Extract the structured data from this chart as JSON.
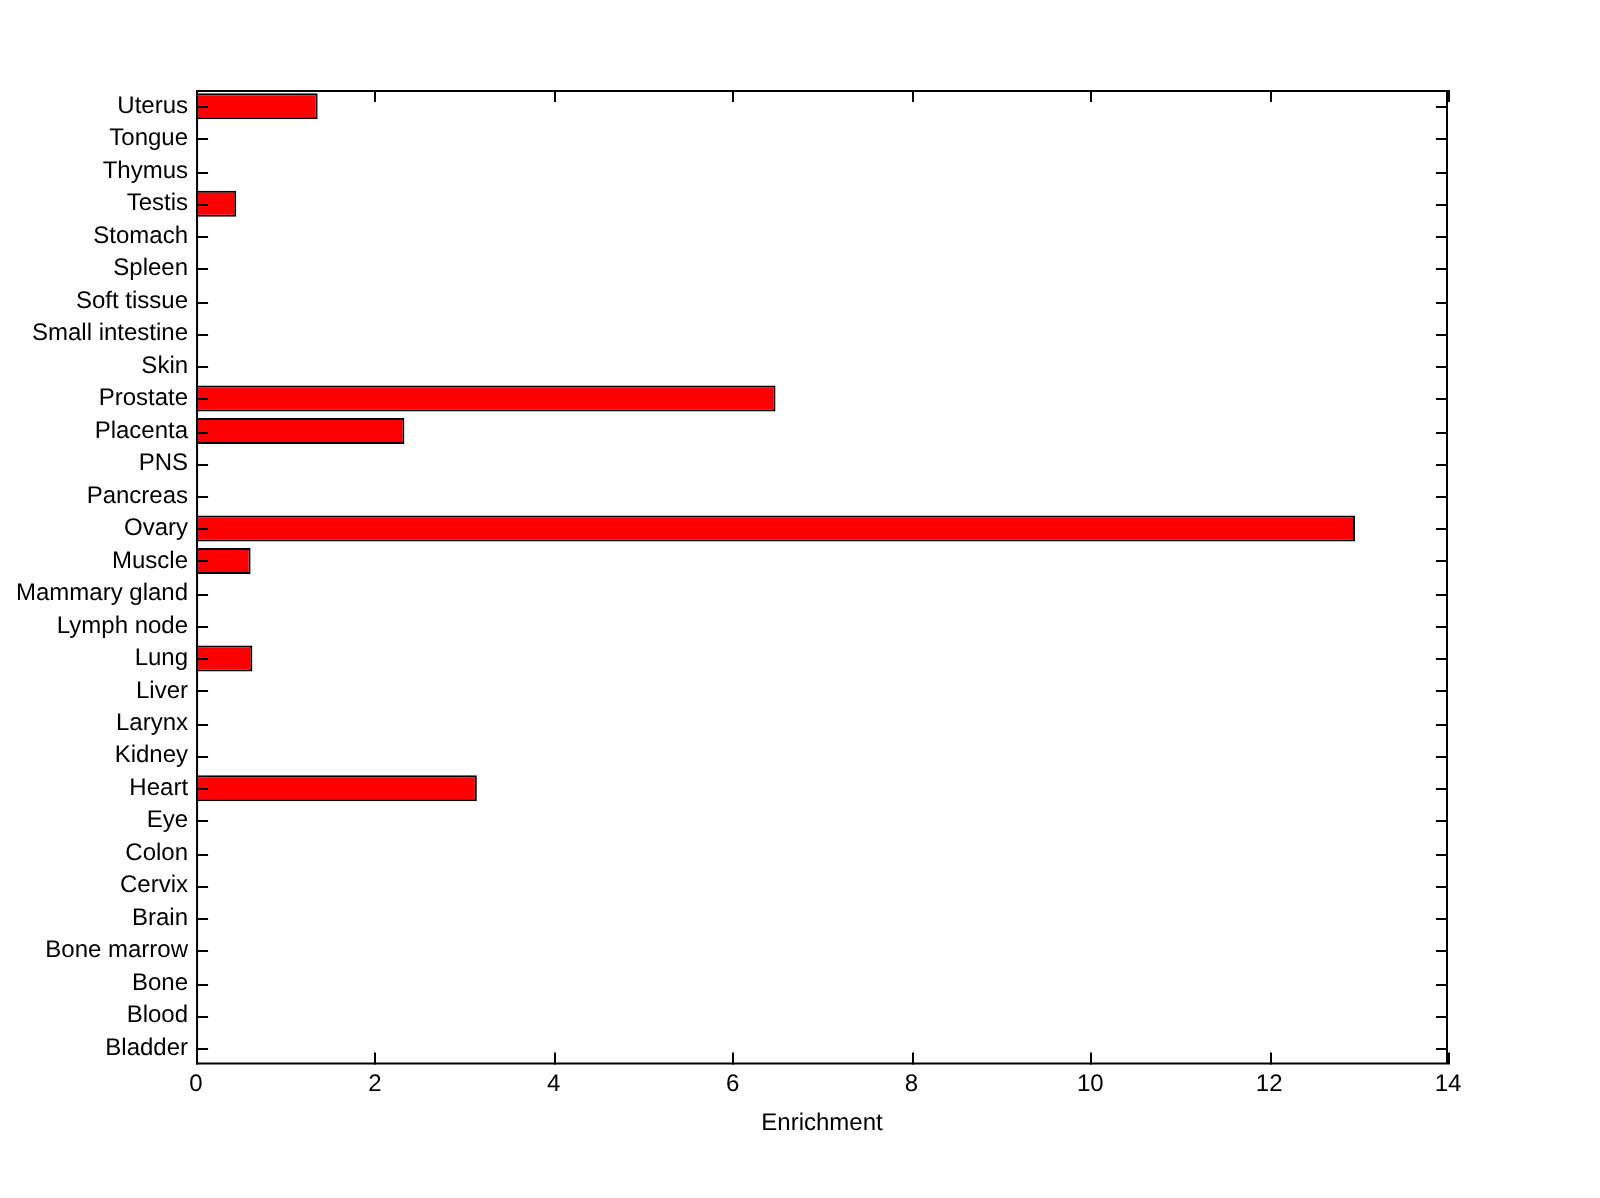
{
  "chart_data": {
    "type": "bar",
    "orientation": "horizontal",
    "xlabel": "Enrichment",
    "categories": [
      "Uterus",
      "Tongue",
      "Thymus",
      "Testis",
      "Stomach",
      "Spleen",
      "Soft tissue",
      "Small intestine",
      "Skin",
      "Prostate",
      "Placenta",
      "PNS",
      "Pancreas",
      "Ovary",
      "Muscle",
      "Mammary gland",
      "Lymph node",
      "Lung",
      "Liver",
      "Larynx",
      "Kidney",
      "Heart",
      "Eye",
      "Colon",
      "Cervix",
      "Brain",
      "Bone marrow",
      "Bone",
      "Blood",
      "Bladder"
    ],
    "values": [
      1.36,
      0,
      0,
      0.45,
      0,
      0,
      0,
      0,
      0,
      6.48,
      2.33,
      0,
      0,
      12.96,
      0.61,
      0,
      0,
      0.63,
      0,
      0,
      0,
      3.14,
      0,
      0,
      0,
      0,
      0,
      0,
      0,
      0
    ],
    "color": "#ff0000",
    "xlim": [
      0,
      14
    ],
    "xticks": [
      0,
      2,
      4,
      6,
      8,
      10,
      12,
      14
    ],
    "grid": false,
    "legend": false
  }
}
